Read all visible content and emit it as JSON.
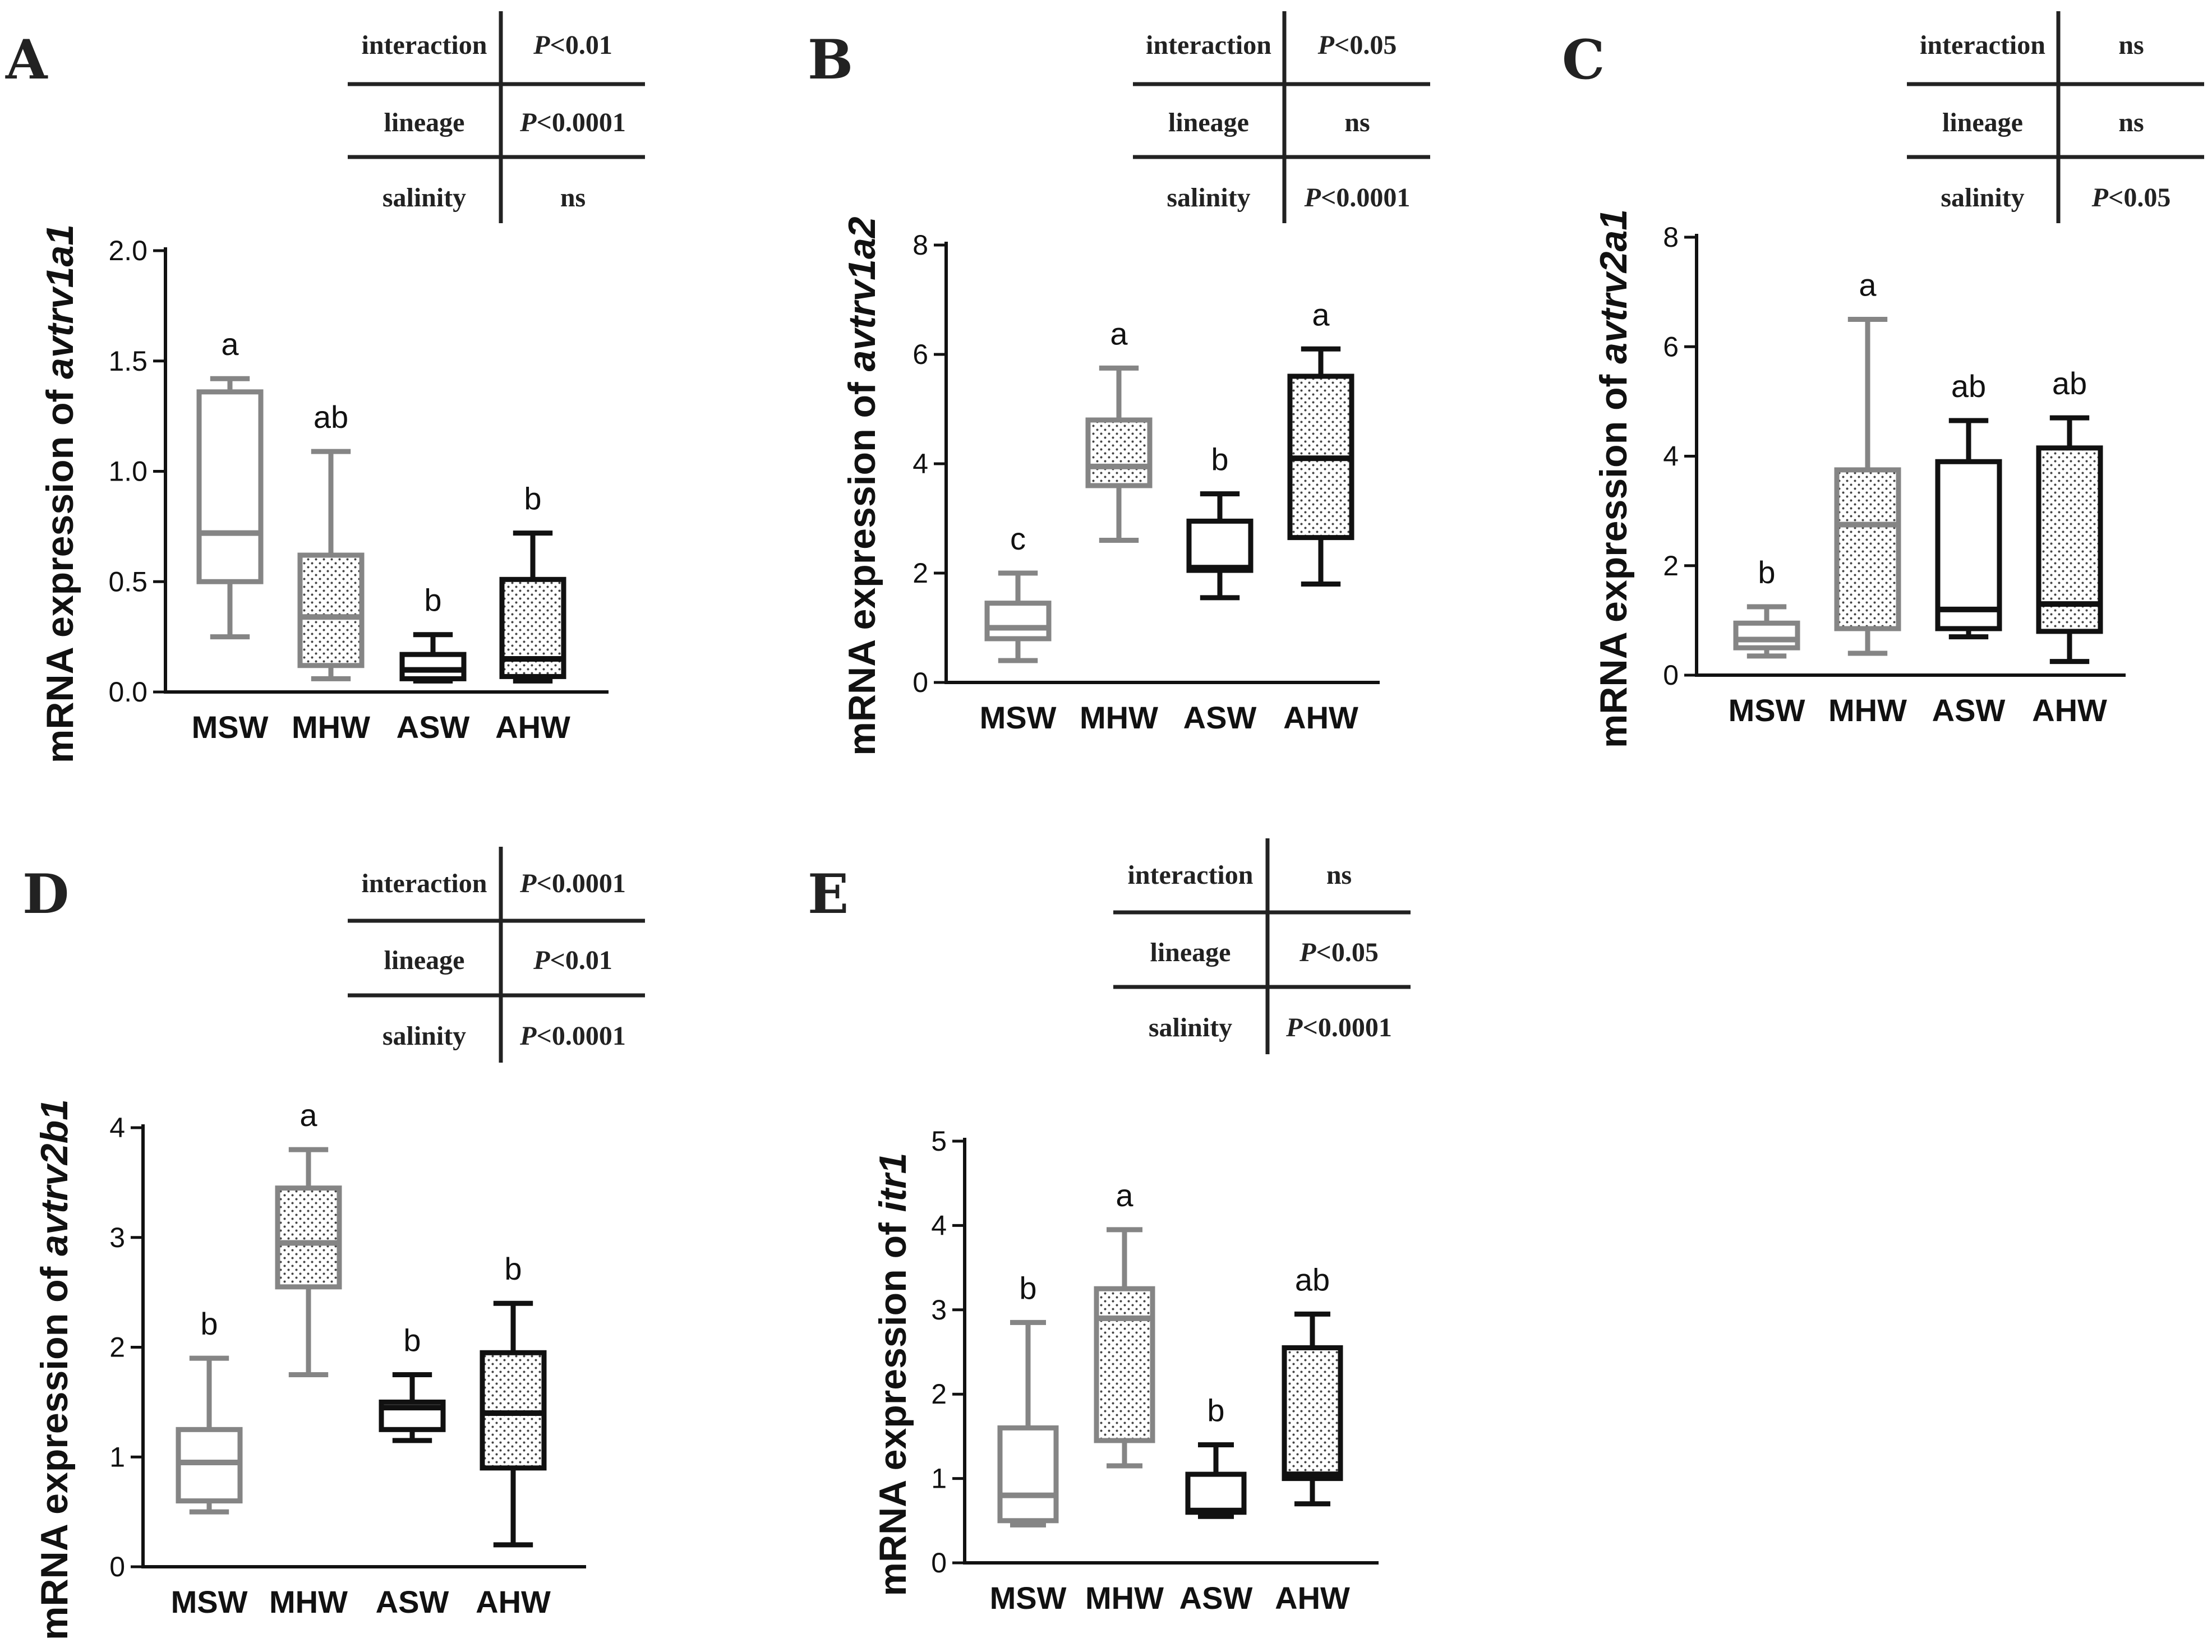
{
  "figure": {
    "caption": ""
  },
  "colors": {
    "gray": "#858585",
    "black": "#111111",
    "dot": "#444444"
  },
  "chart_data": [
    {
      "type": "box",
      "panel": "A",
      "title": "",
      "ylabel_prefix": "mRNA expression of ",
      "gene": "avtrv1a1",
      "categories": [
        "MSW",
        "MHW",
        "ASW",
        "AHW"
      ],
      "ylim": [
        0,
        2.0
      ],
      "yticks": [
        "0.0",
        "0.5",
        "1.0",
        "1.5",
        "2.0"
      ],
      "ytick_values": [
        0,
        0.5,
        1.0,
        1.5,
        2.0
      ],
      "boxes": [
        {
          "min": 0.25,
          "q1": 0.5,
          "median": 0.72,
          "q3": 1.36,
          "max": 1.42
        },
        {
          "min": 0.06,
          "q1": 0.12,
          "median": 0.34,
          "q3": 0.62,
          "max": 1.09
        },
        {
          "min": 0.05,
          "q1": 0.06,
          "median": 0.1,
          "q3": 0.17,
          "max": 0.26
        },
        {
          "min": 0.05,
          "q1": 0.07,
          "median": 0.15,
          "q3": 0.51,
          "max": 0.72
        }
      ],
      "letters": [
        "a",
        "ab",
        "b",
        "b"
      ],
      "stats": [
        {
          "term": "interaction",
          "value": "P<0.01"
        },
        {
          "term": "lineage",
          "value": "P<0.0001"
        },
        {
          "term": "salinity",
          "value": "ns"
        }
      ]
    },
    {
      "type": "box",
      "panel": "B",
      "title": "",
      "ylabel_prefix": "mRNA expression of ",
      "gene": "avtrv1a2",
      "categories": [
        "MSW",
        "MHW",
        "ASW",
        "AHW"
      ],
      "ylim": [
        0,
        8
      ],
      "yticks": [
        "0",
        "2",
        "4",
        "6",
        "8"
      ],
      "ytick_values": [
        0,
        2,
        4,
        6,
        8
      ],
      "boxes": [
        {
          "min": 0.4,
          "q1": 0.8,
          "median": 1.0,
          "q3": 1.45,
          "max": 2.0
        },
        {
          "min": 2.6,
          "q1": 3.6,
          "median": 3.95,
          "q3": 4.8,
          "max": 5.75
        },
        {
          "min": 1.55,
          "q1": 2.05,
          "median": 2.1,
          "q3": 2.95,
          "max": 3.45
        },
        {
          "min": 1.8,
          "q1": 2.65,
          "median": 4.1,
          "q3": 5.6,
          "max": 6.1
        }
      ],
      "letters": [
        "c",
        "a",
        "b",
        "a"
      ],
      "stats": [
        {
          "term": "interaction",
          "value": "P<0.05"
        },
        {
          "term": "lineage",
          "value": "ns"
        },
        {
          "term": "salinity",
          "value": "P<0.0001"
        }
      ]
    },
    {
      "type": "box",
      "panel": "C",
      "title": "",
      "ylabel_prefix": "mRNA expression of ",
      "gene": "avtrv2a1",
      "categories": [
        "MSW",
        "MHW",
        "ASW",
        "AHW"
      ],
      "ylim": [
        0,
        8
      ],
      "yticks": [
        "0",
        "2",
        "4",
        "6",
        "8"
      ],
      "ytick_values": [
        0,
        2,
        4,
        6,
        8
      ],
      "boxes": [
        {
          "min": 0.35,
          "q1": 0.5,
          "median": 0.65,
          "q3": 0.95,
          "max": 1.25
        },
        {
          "min": 0.4,
          "q1": 0.85,
          "median": 2.75,
          "q3": 3.75,
          "max": 6.5
        },
        {
          "min": 0.7,
          "q1": 0.85,
          "median": 1.2,
          "q3": 3.9,
          "max": 4.65
        },
        {
          "min": 0.25,
          "q1": 0.8,
          "median": 1.3,
          "q3": 4.15,
          "max": 4.7
        }
      ],
      "letters": [
        "b",
        "a",
        "ab",
        "ab"
      ],
      "stats": [
        {
          "term": "interaction",
          "value": "ns"
        },
        {
          "term": "lineage",
          "value": "ns"
        },
        {
          "term": "salinity",
          "value": "P<0.05"
        }
      ]
    },
    {
      "type": "box",
      "panel": "D",
      "title": "",
      "ylabel_prefix": "mRNA expression of ",
      "gene": "avtrv2b1",
      "categories": [
        "MSW",
        "MHW",
        "ASW",
        "AHW"
      ],
      "ylim": [
        0,
        4
      ],
      "yticks": [
        "0",
        "1",
        "2",
        "3",
        "4"
      ],
      "ytick_values": [
        0,
        1,
        2,
        3,
        4
      ],
      "boxes": [
        {
          "min": 0.5,
          "q1": 0.6,
          "median": 0.95,
          "q3": 1.25,
          "max": 1.9
        },
        {
          "min": 1.75,
          "q1": 2.55,
          "median": 2.95,
          "q3": 3.45,
          "max": 3.8
        },
        {
          "min": 1.15,
          "q1": 1.25,
          "median": 1.45,
          "q3": 1.5,
          "max": 1.75
        },
        {
          "min": 0.2,
          "q1": 0.9,
          "median": 1.4,
          "q3": 1.95,
          "max": 2.4
        }
      ],
      "letters": [
        "b",
        "a",
        "b",
        "b"
      ],
      "stats": [
        {
          "term": "interaction",
          "value": "P<0.0001"
        },
        {
          "term": "lineage",
          "value": "P<0.01"
        },
        {
          "term": "salinity",
          "value": "P<0.0001"
        }
      ]
    },
    {
      "type": "box",
      "panel": "E",
      "title": "",
      "ylabel_prefix": "mRNA expression of ",
      "gene": "itr1",
      "categories": [
        "MSW",
        "MHW",
        "ASW",
        "AHW"
      ],
      "ylim": [
        0,
        5
      ],
      "yticks": [
        "0",
        "1",
        "2",
        "3",
        "4",
        "5"
      ],
      "ytick_values": [
        0,
        1,
        2,
        3,
        4,
        5
      ],
      "boxes": [
        {
          "min": 0.45,
          "q1": 0.5,
          "median": 0.8,
          "q3": 1.6,
          "max": 2.85
        },
        {
          "min": 1.15,
          "q1": 1.45,
          "median": 2.9,
          "q3": 3.25,
          "max": 3.95
        },
        {
          "min": 0.55,
          "q1": 0.6,
          "median": 0.62,
          "q3": 1.05,
          "max": 1.4
        },
        {
          "min": 0.7,
          "q1": 1.0,
          "median": 1.05,
          "q3": 2.55,
          "max": 2.95
        }
      ],
      "letters": [
        "b",
        "a",
        "b",
        "ab"
      ],
      "stats": [
        {
          "term": "interaction",
          "value": "ns"
        },
        {
          "term": "lineage",
          "value": "P<0.05"
        },
        {
          "term": "salinity",
          "value": "P<0.0001"
        }
      ]
    }
  ]
}
